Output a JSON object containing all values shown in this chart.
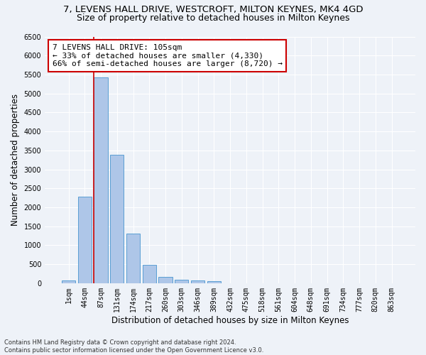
{
  "title_line1": "7, LEVENS HALL DRIVE, WESTCROFT, MILTON KEYNES, MK4 4GD",
  "title_line2": "Size of property relative to detached houses in Milton Keynes",
  "xlabel": "Distribution of detached houses by size in Milton Keynes",
  "ylabel": "Number of detached properties",
  "footnote": "Contains HM Land Registry data © Crown copyright and database right 2024.\nContains public sector information licensed under the Open Government Licence v3.0.",
  "categories": [
    "1sqm",
    "44sqm",
    "87sqm",
    "131sqm",
    "174sqm",
    "217sqm",
    "260sqm",
    "303sqm",
    "346sqm",
    "389sqm",
    "432sqm",
    "475sqm",
    "518sqm",
    "561sqm",
    "604sqm",
    "648sqm",
    "691sqm",
    "734sqm",
    "777sqm",
    "820sqm",
    "863sqm"
  ],
  "values": [
    75,
    2280,
    5430,
    3390,
    1310,
    480,
    165,
    95,
    75,
    55,
    0,
    0,
    0,
    0,
    0,
    0,
    0,
    0,
    0,
    0,
    0
  ],
  "bar_color": "#aec6e8",
  "bar_edge_color": "#5a9fd4",
  "highlight_color": "#cc0000",
  "highlight_index": 2,
  "annotation_text": "7 LEVENS HALL DRIVE: 105sqm\n← 33% of detached houses are smaller (4,330)\n66% of semi-detached houses are larger (8,720) →",
  "annotation_box_color": "#ffffff",
  "annotation_box_edge": "#cc0000",
  "ylim": [
    0,
    6500
  ],
  "yticks": [
    0,
    500,
    1000,
    1500,
    2000,
    2500,
    3000,
    3500,
    4000,
    4500,
    5000,
    5500,
    6000,
    6500
  ],
  "bg_color": "#eef2f8",
  "grid_color": "#ffffff",
  "title_fontsize": 9.5,
  "subtitle_fontsize": 9,
  "axis_fontsize": 8.5,
  "tick_fontsize": 7,
  "annot_fontsize": 8
}
